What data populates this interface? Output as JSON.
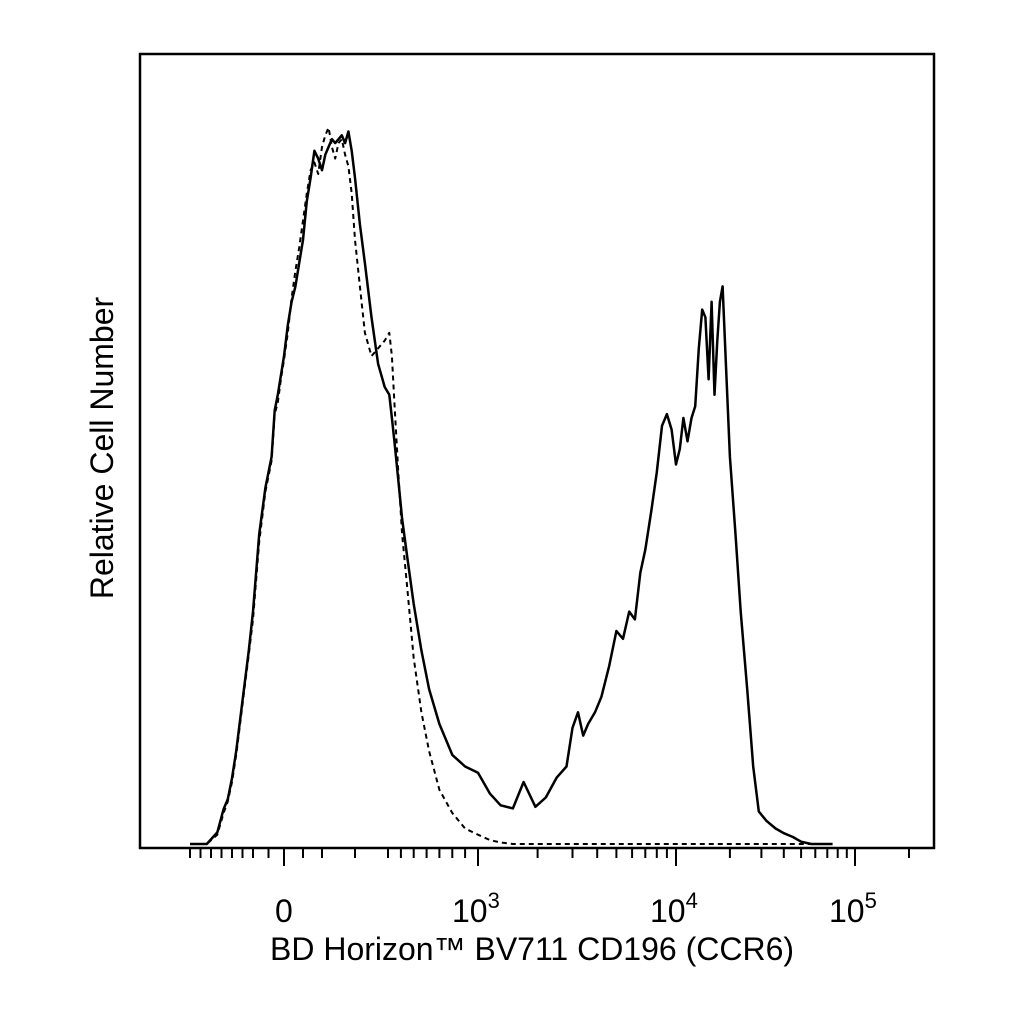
{
  "chart_data": {
    "type": "line",
    "title": "",
    "xlabel": "BD Horizon™ BV711 CD196 (CCR6)",
    "ylabel": "Relative Cell Number",
    "x_scale": "biexponential",
    "xlim": [
      -500,
      200000
    ],
    "ylim": [
      0,
      100
    ],
    "x_ticks": [
      {
        "base": "0",
        "exp": "",
        "value": 0
      },
      {
        "base": "10",
        "exp": "3",
        "value": 1000
      },
      {
        "base": "10",
        "exp": "4",
        "value": 10000
      },
      {
        "base": "10",
        "exp": "5",
        "value": 100000
      }
    ],
    "grid": false,
    "legend": "none",
    "series": [
      {
        "style": "solid",
        "color": "#000000",
        "x": [
          -400,
          -320,
          -270,
          -240,
          -220,
          -200,
          -180,
          -150,
          -120,
          -100,
          -80,
          -60,
          -40,
          -30,
          -20,
          -10,
          0,
          10,
          20,
          30,
          40,
          50,
          60,
          70,
          80,
          90,
          100,
          110,
          120,
          130,
          140,
          150,
          160,
          170,
          180,
          190,
          200,
          215,
          230,
          250,
          270,
          290,
          310,
          330,
          350,
          380,
          410,
          450,
          500,
          560,
          620,
          700,
          800,
          900,
          1000,
          1150,
          1300,
          1500,
          1700,
          1950,
          2200,
          2500,
          2800,
          3000,
          3200,
          3400,
          3600,
          3900,
          4200,
          4600,
          5000,
          5400,
          5800,
          6200,
          6600,
          7000,
          7500,
          8000,
          8500,
          9000,
          9500,
          10000,
          10500,
          11000,
          11600,
          12200,
          12800,
          13400,
          14000,
          14600,
          15200,
          15800,
          16400,
          17000,
          17600,
          18200,
          19000,
          20000,
          21500,
          23000,
          25000,
          27000,
          29000,
          32000,
          36000,
          40000,
          45000,
          50000,
          57000,
          65000,
          75000
        ],
        "values": [
          0.0,
          0.0,
          1.5,
          4.5,
          5.8,
          8.5,
          12.0,
          18.5,
          25.0,
          30.0,
          40.0,
          46.0,
          50.0,
          56.0,
          58.0,
          60.5,
          63.0,
          67.0,
          70.0,
          72.0,
          75.0,
          78.0,
          83.0,
          86.0,
          89.5,
          88.5,
          87.0,
          89.0,
          90.0,
          91.0,
          90.5,
          91.0,
          91.5,
          90.5,
          92.0,
          89.5,
          86.0,
          80.0,
          75.0,
          68.0,
          62.0,
          59.0,
          58.0,
          55.0,
          52.0,
          47.0,
          42.0,
          37.0,
          31.0,
          25.0,
          20.0,
          15.5,
          11.5,
          10.0,
          9.2,
          6.5,
          5.0,
          4.6,
          8.0,
          4.8,
          6.0,
          8.6,
          10.0,
          15.0,
          17.0,
          14.0,
          15.5,
          17.0,
          19.0,
          23.0,
          27.5,
          26.5,
          30.0,
          29.0,
          35.0,
          38.0,
          43.0,
          48.0,
          54.0,
          55.5,
          53.5,
          49.0,
          51.0,
          55.0,
          52.0,
          55.0,
          56.5,
          64.0,
          69.0,
          68.0,
          60.0,
          70.0,
          58.0,
          65.0,
          70.0,
          72.0,
          62.0,
          50.0,
          40.0,
          30.0,
          20.0,
          10.0,
          4.2,
          3.0,
          2.0,
          1.4,
          0.9,
          0.3,
          0.0,
          0.0,
          0.0
        ]
      },
      {
        "style": "dashed",
        "color": "#000000",
        "x": [
          -400,
          -320,
          -270,
          -240,
          -220,
          -200,
          -180,
          -150,
          -120,
          -100,
          -80,
          -60,
          -40,
          -30,
          -20,
          -10,
          0,
          10,
          20,
          30,
          40,
          50,
          60,
          70,
          80,
          90,
          100,
          110,
          120,
          130,
          140,
          150,
          160,
          170,
          180,
          190,
          200,
          215,
          230,
          250,
          270,
          290,
          310,
          330,
          350,
          380,
          410,
          450,
          500,
          560,
          620,
          700,
          800,
          900,
          1000,
          1150,
          1300,
          1500,
          2000,
          3000,
          5000,
          10000,
          20000,
          50000,
          75000
        ],
        "values": [
          0.0,
          0.0,
          1.2,
          4.0,
          5.5,
          8.0,
          11.5,
          18.0,
          24.5,
          29.0,
          39.0,
          45.5,
          49.5,
          55.5,
          57.0,
          60.0,
          62.5,
          66.0,
          70.5,
          74.0,
          77.0,
          80.5,
          84.0,
          87.0,
          88.0,
          86.5,
          90.0,
          91.5,
          92.5,
          90.0,
          88.5,
          90.5,
          91.0,
          89.0,
          87.5,
          84.0,
          78.0,
          72.0,
          66.0,
          63.0,
          64.0,
          65.0,
          66.0,
          63.0,
          57.0,
          48.0,
          40.0,
          33.0,
          24.0,
          17.0,
          12.0,
          7.0,
          4.0,
          2.0,
          1.2,
          0.5,
          0.2,
          0.0,
          0.0,
          0.0,
          0.0,
          0.0,
          0.0,
          0.0,
          0.0
        ]
      }
    ]
  }
}
